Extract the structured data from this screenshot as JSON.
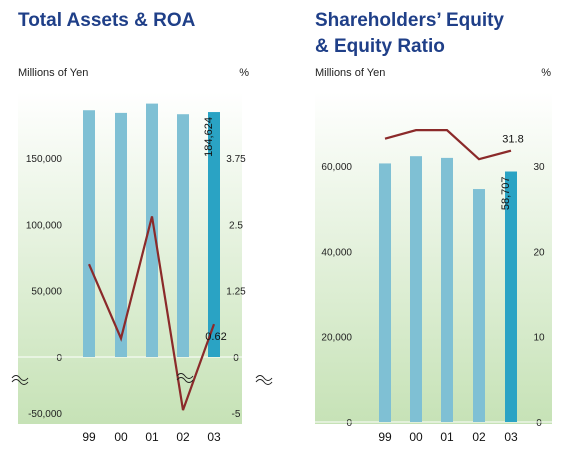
{
  "colors": {
    "title": "#1f3f88",
    "bar": "#7fc0d4",
    "bar_highlight": "#2aa3c4",
    "line": "#8b2a2a",
    "panel_top": "#ffffff",
    "panel_bottom": "#c6e2b6"
  },
  "chart_data": [
    {
      "type": "bar",
      "title": "Total Assets & ROA",
      "ylabel_left": "Millions of Yen",
      "ylabel_right": "%",
      "categories": [
        "99",
        "00",
        "01",
        "02",
        "03"
      ],
      "left_ticks": [
        "150,000",
        "100,000",
        "50,000",
        "0",
        "-50,000"
      ],
      "right_ticks": [
        "3.75",
        "2.5",
        "1.25",
        "0",
        "-5"
      ],
      "axis_break": true,
      "series": [
        {
          "name": "",
          "kind": "bar",
          "axis": "left",
          "values": [
            186000,
            184000,
            191000,
            183000,
            184624
          ]
        },
        {
          "name": "",
          "kind": "line",
          "axis": "right",
          "values": [
            1.75,
            0.35,
            2.65,
            -1.0,
            0.62
          ]
        }
      ],
      "data_labels": [
        {
          "series": 0,
          "index": 4,
          "text": "184,624"
        },
        {
          "series": 1,
          "index": 4,
          "text": "0.62"
        }
      ],
      "ylim_left": [
        -50000,
        200000
      ],
      "ylim_right": [
        -5,
        5
      ],
      "grid": false
    },
    {
      "type": "bar",
      "title": [
        "Shareholders’ Equity",
        "& Equity Ratio"
      ],
      "ylabel_left": "Millions of Yen",
      "ylabel_right": "%",
      "categories": [
        "99",
        "00",
        "01",
        "02",
        "03"
      ],
      "left_ticks": [
        "60,000",
        "40,000",
        "20,000",
        "0"
      ],
      "right_ticks": [
        "30",
        "20",
        "10",
        "0"
      ],
      "series": [
        {
          "name": "",
          "kind": "bar",
          "axis": "left",
          "values": [
            60600,
            62300,
            61900,
            54600,
            58707
          ]
        },
        {
          "name": "",
          "kind": "line",
          "axis": "right",
          "values": [
            33.2,
            34.2,
            34.2,
            30.8,
            31.8
          ]
        }
      ],
      "data_labels": [
        {
          "series": 0,
          "index": 4,
          "text": "58,707"
        },
        {
          "series": 1,
          "index": 4,
          "text": "31.8"
        }
      ],
      "ylim_left": [
        0,
        75000
      ],
      "ylim_right": [
        0,
        37.5
      ],
      "grid": false
    }
  ]
}
